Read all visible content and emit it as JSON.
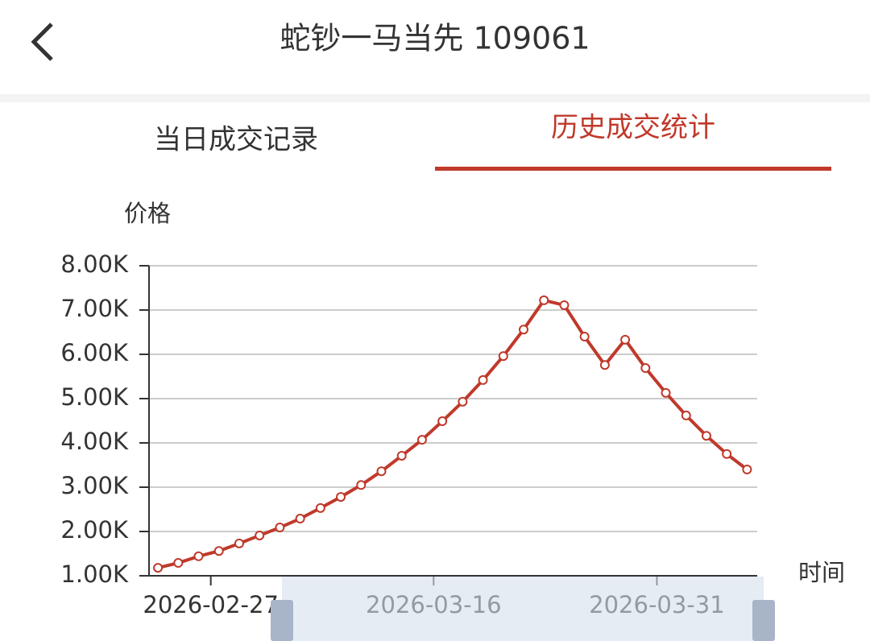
{
  "header": {
    "title": "蛇钞一马当先 109061"
  },
  "tabs": [
    "当日成交记录",
    "历史成交统计"
  ],
  "chart_data": {
    "type": "line",
    "y_label": "价格",
    "x_label": "时间",
    "color": "#c0392b",
    "values": [
      1180,
      1290,
      1440,
      1560,
      1730,
      1910,
      2090,
      2290,
      2530,
      2780,
      3050,
      3360,
      3710,
      4070,
      4490,
      4930,
      5420,
      5960,
      6560,
      7220,
      7110,
      6400,
      5760,
      6330,
      5690,
      5130,
      4620,
      4160,
      3750,
      3400
    ],
    "xlim": [
      -0.44,
      29.5
    ],
    "xticks": [
      {
        "value": 2.6,
        "label": "2026-02-27"
      },
      {
        "value": 13.57,
        "label": "2026-03-16"
      },
      {
        "value": 24.56,
        "label": "2026-03-31"
      }
    ],
    "ylim": [
      1000,
      8000
    ],
    "yticks": [
      {
        "value": 1000,
        "label": "1.00K"
      },
      {
        "value": 2000,
        "label": "2.00K"
      },
      {
        "value": 3000,
        "label": "3.00K"
      },
      {
        "value": 4000,
        "label": "4.00K"
      },
      {
        "value": 5000,
        "label": "5.00K"
      },
      {
        "value": 6000,
        "label": "6.00K"
      },
      {
        "value": 7000,
        "label": "7.00K"
      },
      {
        "value": 8000,
        "label": "8.00K"
      }
    ],
    "grid": true
  }
}
